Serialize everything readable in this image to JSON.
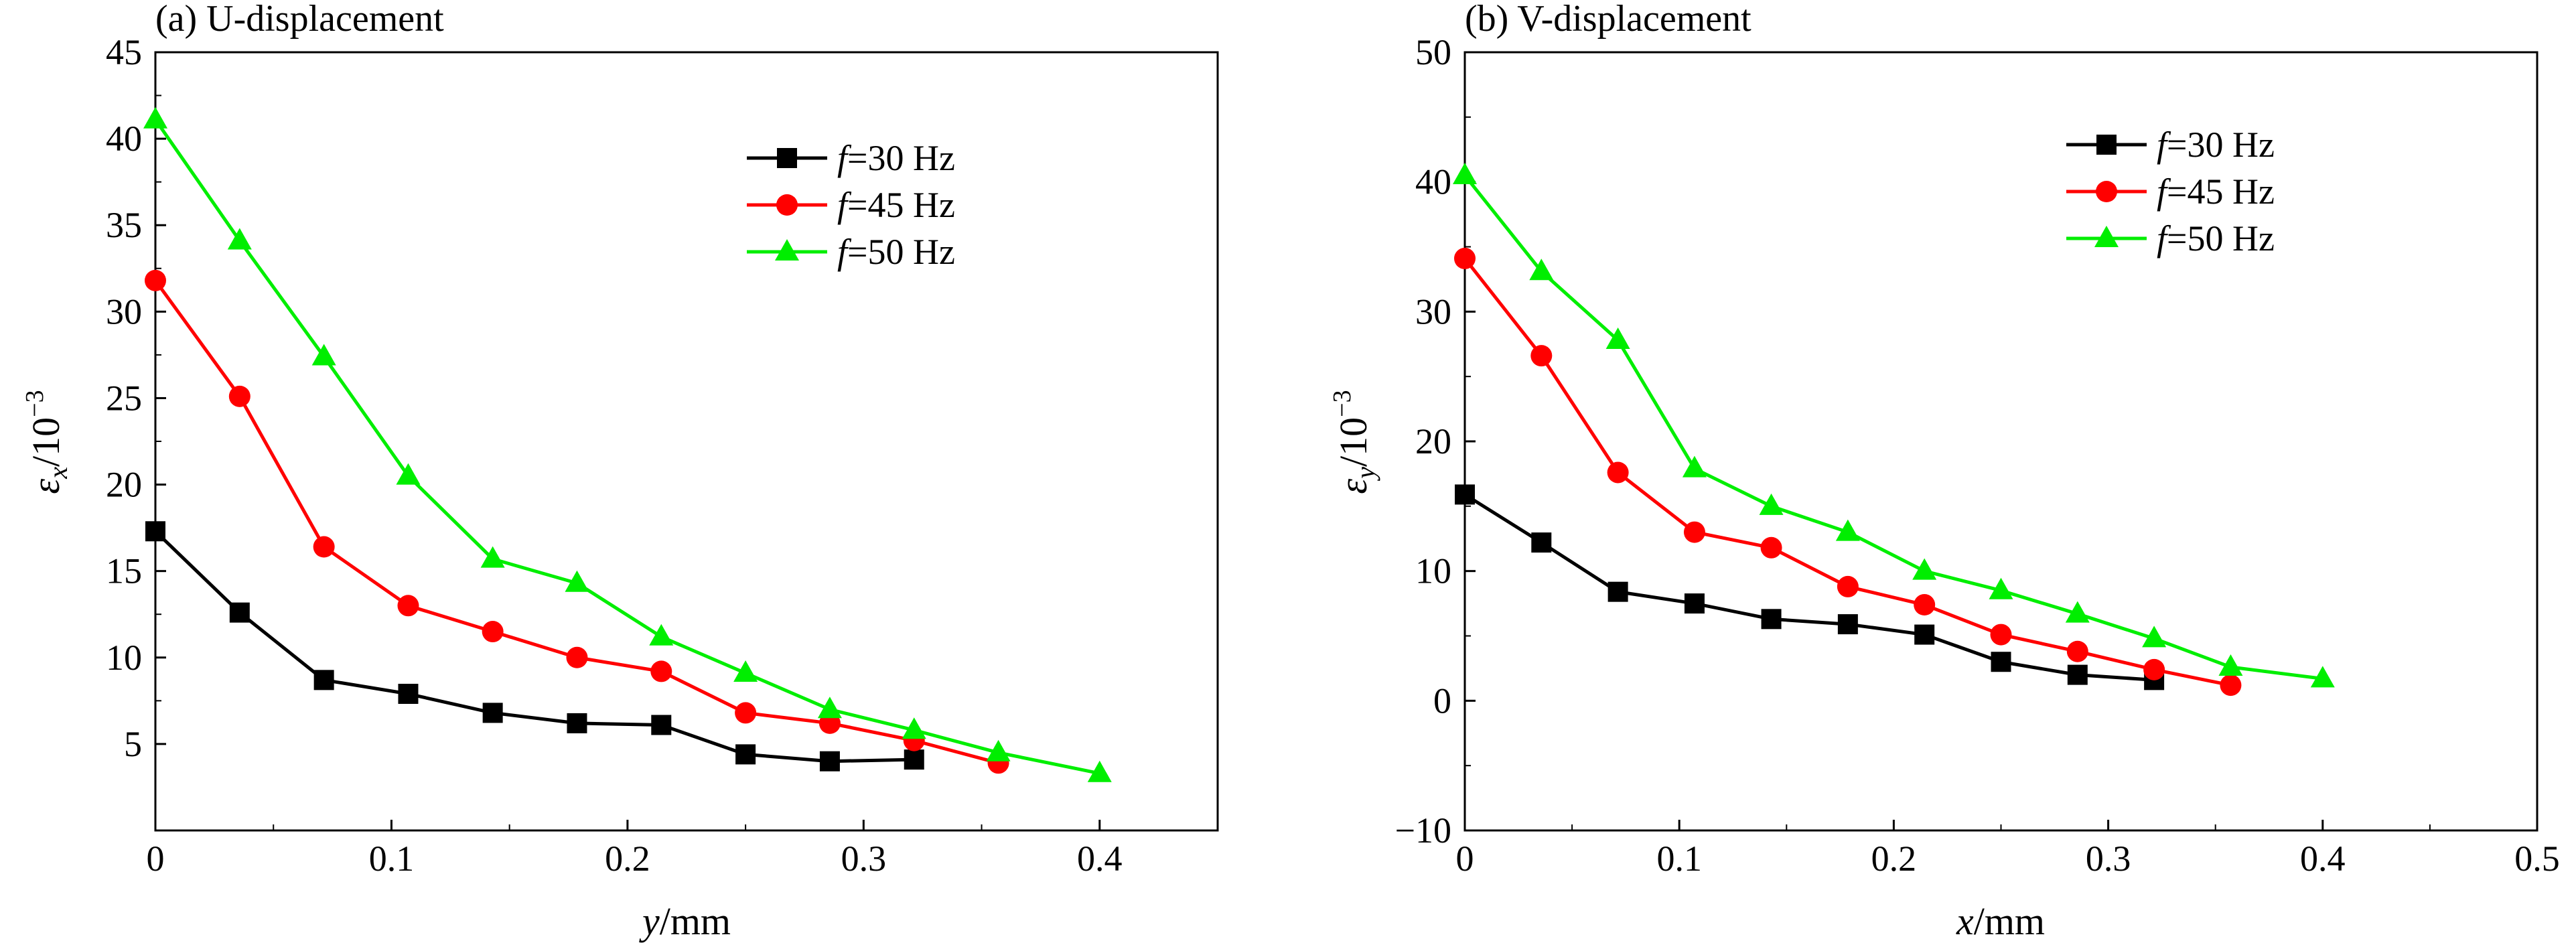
{
  "chart_data": [
    {
      "type": "line",
      "title": "(a) U-displacement",
      "xlabel": {
        "var": "y",
        "rest": "/mm"
      },
      "ylabel": {
        "base": "ε",
        "sub": "x",
        "rest": "/10",
        "exp": "−3"
      },
      "xlim": [
        0,
        0.45
      ],
      "ylim": [
        0,
        45
      ],
      "xticks": [
        0,
        0.1,
        0.2,
        0.3,
        0.4
      ],
      "xtick_labels": [
        "0",
        "0.1",
        "0.2",
        "0.3",
        "0.4"
      ],
      "yticks": [
        5,
        10,
        15,
        20,
        25,
        30,
        35,
        40,
        45
      ],
      "ytick_labels": [
        "5",
        "10",
        "15",
        "20",
        "25",
        "30",
        "35",
        "40",
        "45"
      ],
      "grid": false,
      "legend_position": "top-right",
      "series": [
        {
          "name": "f=30 Hz",
          "name_italic": "f",
          "name_rest": "=30 Hz",
          "color": "#000000",
          "marker": "square",
          "x": [
            0,
            0.0357,
            0.0714,
            0.1071,
            0.1429,
            0.1786,
            0.2143,
            0.25,
            0.2857,
            0.3214
          ],
          "y": [
            17.3,
            12.6,
            8.7,
            7.9,
            6.8,
            6.2,
            6.1,
            4.4,
            4.0,
            4.1
          ]
        },
        {
          "name": "f=45 Hz",
          "name_italic": "f",
          "name_rest": "=45 Hz",
          "color": "#ff0000",
          "marker": "circle",
          "x": [
            0,
            0.0357,
            0.0714,
            0.1071,
            0.1429,
            0.1786,
            0.2143,
            0.25,
            0.2857,
            0.3214,
            0.3571
          ],
          "y": [
            31.8,
            25.1,
            16.4,
            13.0,
            11.5,
            10.0,
            9.2,
            6.8,
            6.2,
            5.2,
            3.9
          ]
        },
        {
          "name": "f=50 Hz",
          "name_italic": "f",
          "name_rest": "=50 Hz",
          "color": "#00ee00",
          "marker": "triangle",
          "x": [
            0,
            0.0357,
            0.0714,
            0.1071,
            0.1429,
            0.1786,
            0.2143,
            0.25,
            0.2857,
            0.3214,
            0.3571,
            0.4
          ],
          "y": [
            41.1,
            34.1,
            27.4,
            20.5,
            15.7,
            14.3,
            11.2,
            9.1,
            7.0,
            5.8,
            4.5,
            3.3
          ]
        }
      ]
    },
    {
      "type": "line",
      "title": "(b) V-displacement",
      "xlabel": {
        "var": "x",
        "rest": "/mm"
      },
      "ylabel": {
        "base": "ε",
        "sub": "y",
        "rest": "/10",
        "exp": "−3"
      },
      "xlim": [
        0,
        0.5
      ],
      "ylim": [
        -10,
        50
      ],
      "xticks": [
        0,
        0.1,
        0.2,
        0.3,
        0.4,
        0.5
      ],
      "xtick_labels": [
        "0",
        "0.1",
        "0.2",
        "0.3",
        "0.4",
        "0.5"
      ],
      "yticks": [
        -10,
        0,
        10,
        20,
        30,
        40,
        50
      ],
      "ytick_labels": [
        "−10",
        "0",
        "10",
        "20",
        "30",
        "40",
        "50"
      ],
      "grid": false,
      "legend_position": "top-right",
      "series": [
        {
          "name": "f=30 Hz",
          "name_italic": "f",
          "name_rest": "=30 Hz",
          "color": "#000000",
          "marker": "square",
          "x": [
            0,
            0.0357,
            0.0714,
            0.1071,
            0.1429,
            0.1786,
            0.2143,
            0.25,
            0.2857,
            0.3214
          ],
          "y": [
            15.9,
            12.2,
            8.4,
            7.5,
            6.3,
            5.9,
            5.1,
            3.0,
            2.0,
            1.6
          ]
        },
        {
          "name": "f=45 Hz",
          "name_italic": "f",
          "name_rest": "=45 Hz",
          "color": "#ff0000",
          "marker": "circle",
          "x": [
            0,
            0.0357,
            0.0714,
            0.1071,
            0.1429,
            0.1786,
            0.2143,
            0.25,
            0.2857,
            0.3214,
            0.3571
          ],
          "y": [
            34.1,
            26.6,
            17.6,
            13.0,
            11.8,
            8.8,
            7.4,
            5.1,
            3.8,
            2.4,
            1.2
          ]
        },
        {
          "name": "f=50 Hz",
          "name_italic": "f",
          "name_rest": "=50 Hz",
          "color": "#00ee00",
          "marker": "triangle",
          "x": [
            0,
            0.0357,
            0.0714,
            0.1071,
            0.1429,
            0.1786,
            0.2143,
            0.25,
            0.2857,
            0.3214,
            0.3571,
            0.4
          ],
          "y": [
            40.5,
            33.1,
            27.8,
            17.9,
            15.0,
            13.0,
            10.0,
            8.5,
            6.7,
            4.8,
            2.6,
            1.7
          ]
        }
      ]
    }
  ]
}
